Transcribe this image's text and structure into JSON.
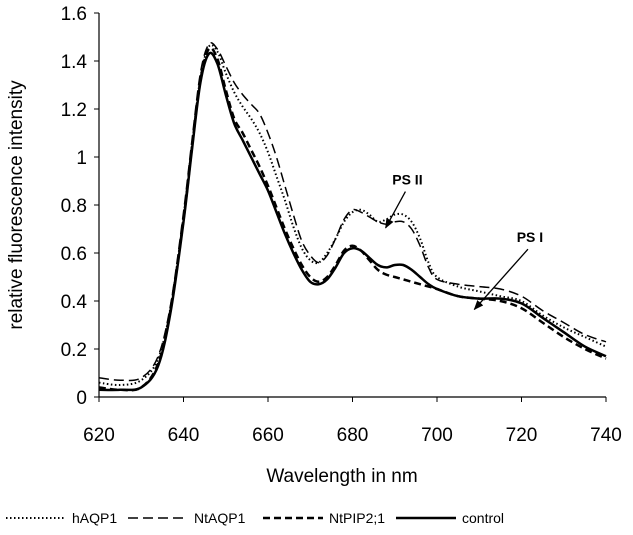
{
  "chart_data": {
    "type": "line",
    "title": "",
    "xlabel": "Wavelength in nm",
    "ylabel": "relative fluorescence intensity",
    "xlim": [
      620,
      740
    ],
    "ylim": [
      0,
      1.6
    ],
    "xticks": [
      620,
      640,
      660,
      680,
      700,
      720,
      740
    ],
    "xtick_labels": [
      "620",
      "640",
      "660",
      "680",
      "700",
      "720",
      "740"
    ],
    "yticks": [
      0,
      0.2,
      0.4,
      0.6,
      0.8,
      1.0,
      1.2,
      1.4,
      1.6
    ],
    "ytick_labels": [
      "0",
      "0.2",
      "0.4",
      "0.6",
      "0.8",
      "1",
      "1.2",
      "1.4",
      "1.6"
    ],
    "grid": false,
    "legend_position": "bottom",
    "series": [
      {
        "name": "hAQP1",
        "dash": "dotted",
        "width": 2,
        "x": [
          620,
          625,
          630,
          634,
          637,
          640,
          642,
          644,
          646,
          648,
          650,
          652,
          654,
          656,
          658,
          660,
          662,
          664,
          666,
          668,
          670,
          672,
          674,
          676,
          678,
          680,
          682,
          684,
          686,
          688,
          690,
          692,
          694,
          696,
          698,
          700,
          705,
          710,
          715,
          720,
          725,
          730,
          735,
          740
        ],
        "y": [
          0.06,
          0.05,
          0.07,
          0.16,
          0.38,
          0.75,
          1.05,
          1.33,
          1.46,
          1.44,
          1.35,
          1.27,
          1.21,
          1.16,
          1.1,
          1.02,
          0.92,
          0.82,
          0.71,
          0.62,
          0.57,
          0.56,
          0.6,
          0.66,
          0.73,
          0.77,
          0.78,
          0.76,
          0.73,
          0.74,
          0.76,
          0.76,
          0.73,
          0.66,
          0.56,
          0.5,
          0.46,
          0.44,
          0.42,
          0.4,
          0.34,
          0.29,
          0.25,
          0.21
        ]
      },
      {
        "name": "NtAQP1",
        "dash": "longdash",
        "width": 1.5,
        "x": [
          620,
          625,
          630,
          634,
          637,
          640,
          642,
          644,
          646,
          648,
          650,
          652,
          654,
          656,
          658,
          660,
          662,
          664,
          666,
          668,
          670,
          672,
          674,
          676,
          678,
          680,
          682,
          684,
          686,
          688,
          690,
          692,
          694,
          696,
          698,
          700,
          705,
          710,
          715,
          720,
          725,
          730,
          735,
          740
        ],
        "y": [
          0.08,
          0.07,
          0.08,
          0.17,
          0.39,
          0.77,
          1.07,
          1.35,
          1.47,
          1.45,
          1.38,
          1.31,
          1.26,
          1.22,
          1.18,
          1.1,
          1.0,
          0.88,
          0.76,
          0.65,
          0.59,
          0.56,
          0.59,
          0.66,
          0.74,
          0.78,
          0.77,
          0.75,
          0.73,
          0.72,
          0.73,
          0.73,
          0.7,
          0.63,
          0.54,
          0.49,
          0.47,
          0.46,
          0.45,
          0.42,
          0.36,
          0.31,
          0.26,
          0.23
        ]
      },
      {
        "name": "NtPIP2;1",
        "dash": "dash",
        "width": 2.5,
        "x": [
          620,
          625,
          630,
          634,
          637,
          640,
          642,
          644,
          646,
          648,
          650,
          652,
          654,
          656,
          658,
          660,
          662,
          664,
          666,
          668,
          670,
          672,
          674,
          676,
          678,
          680,
          682,
          684,
          686,
          688,
          690,
          692,
          694,
          696,
          698,
          700,
          705,
          710,
          715,
          720,
          725,
          730,
          735,
          740
        ],
        "y": [
          0.04,
          0.03,
          0.04,
          0.14,
          0.37,
          0.74,
          1.04,
          1.32,
          1.45,
          1.41,
          1.28,
          1.16,
          1.1,
          1.03,
          0.96,
          0.88,
          0.79,
          0.7,
          0.62,
          0.55,
          0.5,
          0.48,
          0.5,
          0.55,
          0.61,
          0.63,
          0.61,
          0.57,
          0.53,
          0.51,
          0.5,
          0.49,
          0.48,
          0.47,
          0.46,
          0.45,
          0.42,
          0.41,
          0.4,
          0.37,
          0.31,
          0.25,
          0.2,
          0.16
        ]
      },
      {
        "name": "control",
        "dash": "solid",
        "width": 2.5,
        "x": [
          620,
          625,
          630,
          634,
          637,
          640,
          642,
          644,
          646,
          648,
          650,
          652,
          654,
          656,
          658,
          660,
          662,
          664,
          666,
          668,
          670,
          672,
          674,
          676,
          678,
          680,
          682,
          684,
          686,
          688,
          690,
          692,
          694,
          696,
          698,
          700,
          705,
          710,
          715,
          720,
          725,
          730,
          735,
          740
        ],
        "y": [
          0.03,
          0.03,
          0.04,
          0.13,
          0.36,
          0.73,
          1.03,
          1.31,
          1.43,
          1.39,
          1.26,
          1.14,
          1.07,
          1.0,
          0.93,
          0.86,
          0.77,
          0.68,
          0.6,
          0.53,
          0.48,
          0.47,
          0.49,
          0.54,
          0.6,
          0.62,
          0.61,
          0.58,
          0.55,
          0.54,
          0.55,
          0.55,
          0.53,
          0.5,
          0.47,
          0.45,
          0.42,
          0.41,
          0.41,
          0.39,
          0.33,
          0.27,
          0.21,
          0.17
        ]
      }
    ],
    "annotations": [
      {
        "text": "PS II",
        "x": 693,
        "y": 0.86,
        "arrow_to": [
          694,
          0.83
        ]
      },
      {
        "text": "PS I",
        "x": 722,
        "y": 0.62,
        "arrow_to": [
          715,
          0.49
        ]
      }
    ]
  }
}
